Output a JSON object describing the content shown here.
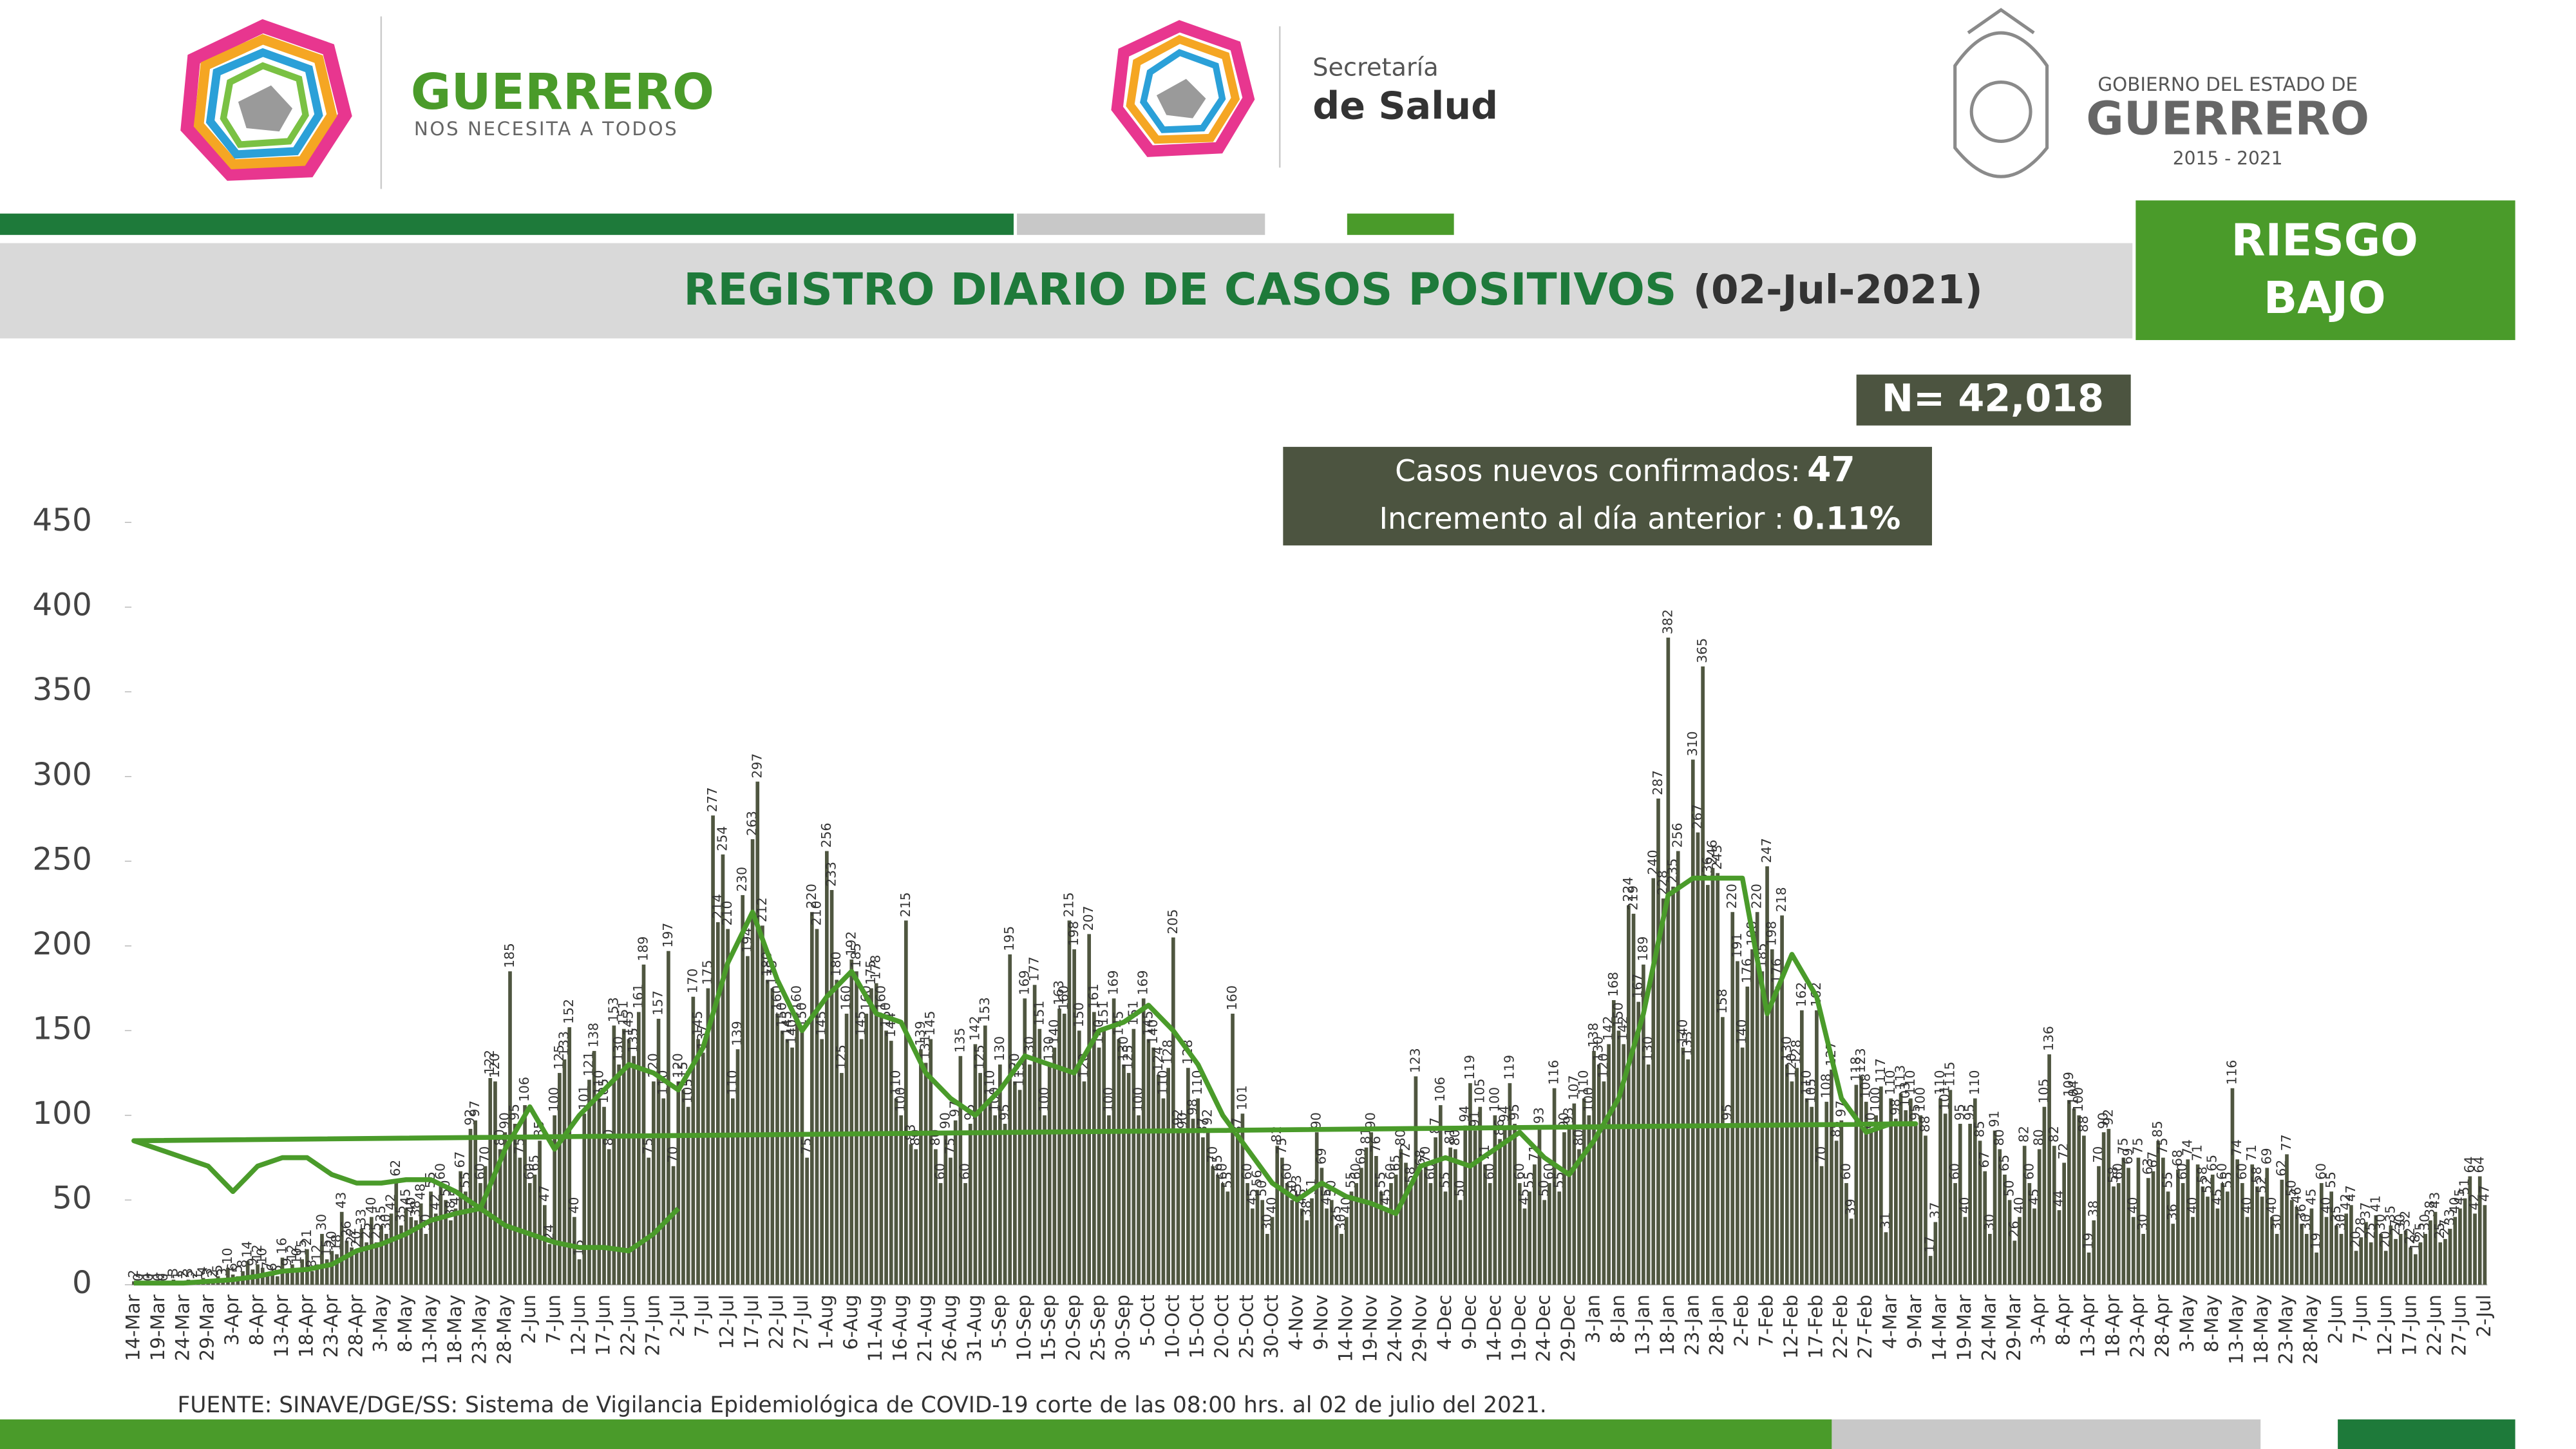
{
  "header": {
    "brand_title": "GUERRERO",
    "brand_subtitle": "NOS NECESITA A TODOS",
    "ministry_line1": "Secretaría",
    "ministry_line2": "de Salud",
    "gov_line1": "GOBIERNO DEL ESTADO DE",
    "gov_line2": "GUERRERO",
    "gov_years": "2015 - 2021"
  },
  "badge": {
    "line1": "RIESGO",
    "line2": "BAJO"
  },
  "summary": {
    "n": "N= 42,018",
    "new_cases_label": "Casos nuevos confirmados:",
    "new_cases": 47,
    "increase_label": "Incremento al día anterior :",
    "increase": "0.11%"
  },
  "chart_data": {
    "type": "bar",
    "title": "REGISTRO DIARIO DE CASOS POSITIVOS",
    "subtitle": "(02-Jul-2021)",
    "color": "#4f5640",
    "categories": [
      "14-Mar",
      null,
      null,
      null,
      null,
      "19-Mar",
      null,
      null,
      null,
      null,
      "24-Mar",
      null,
      null,
      null,
      null,
      "29-Mar",
      null,
      null,
      null,
      null,
      "3-Apr",
      null,
      null,
      null,
      null,
      "8-Apr",
      null,
      null,
      null,
      null,
      "13-Apr",
      null,
      null,
      null,
      null,
      "18-Apr",
      null,
      null,
      null,
      null,
      "23-Apr",
      null,
      null,
      null,
      null,
      "28-Apr",
      null,
      null,
      null,
      null,
      "3-May",
      null,
      null,
      null,
      null,
      "8-May",
      null,
      null,
      null,
      null,
      "13-May",
      null,
      null,
      null,
      null,
      "18-May",
      null,
      null,
      null,
      null,
      "23-May",
      null,
      null,
      null,
      null,
      "28-May",
      null,
      null,
      null,
      null,
      "2-Jun",
      null,
      null,
      null,
      null,
      "7-Jun",
      null,
      null,
      null,
      null,
      "12-Jun",
      null,
      null,
      null,
      null,
      "17-Jun",
      null,
      null,
      null,
      null,
      "22-Jun",
      null,
      null,
      null,
      null,
      "27-Jun",
      null,
      null,
      null,
      null,
      "2-Jul",
      null,
      null,
      null,
      null,
      "7-Jul",
      null,
      null,
      null,
      null,
      "12-Jul",
      null,
      null,
      null,
      null,
      "17-Jul",
      null,
      null,
      null,
      null,
      "22-Jul",
      null,
      null,
      null,
      null,
      "27-Jul",
      null,
      null,
      null,
      null,
      "1-Aug",
      null,
      null,
      null,
      null,
      "6-Aug",
      null,
      null,
      null,
      null,
      "11-Aug",
      null,
      null,
      null,
      null,
      "16-Aug",
      null,
      null,
      null,
      null,
      "21-Aug",
      null,
      null,
      null,
      null,
      "26-Aug",
      null,
      null,
      null,
      null,
      "31-Aug",
      null,
      null,
      null,
      null,
      "5-Sep",
      null,
      null,
      null,
      null,
      "10-Sep",
      null,
      null,
      null,
      null,
      "15-Sep",
      null,
      null,
      null,
      null,
      "20-Sep",
      null,
      null,
      null,
      null,
      "25-Sep",
      null,
      null,
      null,
      null,
      "30-Sep",
      null,
      null,
      null,
      null,
      "5-Oct",
      null,
      null,
      null,
      null,
      "10-Oct",
      null,
      null,
      null,
      null,
      "15-Oct",
      null,
      null,
      null,
      null,
      "20-Oct",
      null,
      null,
      null,
      null,
      "25-Oct",
      null,
      null,
      null,
      null,
      "30-Oct",
      null,
      null,
      null,
      null,
      "4-Nov",
      null,
      null,
      null,
      null,
      "9-Nov",
      null,
      null,
      null,
      null,
      "14-Nov",
      null,
      null,
      null,
      null,
      "19-Nov",
      null,
      null,
      null,
      null,
      "24-Nov",
      null,
      null,
      null,
      null,
      "29-Nov",
      null,
      null,
      null,
      null,
      "4-Dec",
      null,
      null,
      null,
      null,
      "9-Dec",
      null,
      null,
      null,
      null,
      "14-Dec",
      null,
      null,
      null,
      null,
      "19-Dec",
      null,
      null,
      null,
      null,
      "24-Dec",
      null,
      null,
      null,
      null,
      "29-Dec",
      null,
      null,
      null,
      null,
      "3-Jan",
      null,
      null,
      null,
      null,
      "8-Jan",
      null,
      null,
      null,
      null,
      "13-Jan",
      null,
      null,
      null,
      null,
      "18-Jan",
      null,
      null,
      null,
      null,
      "23-Jan",
      null,
      null,
      null,
      null,
      "28-Jan",
      null,
      null,
      null,
      null,
      "2-Feb",
      null,
      null,
      null,
      null,
      "7-Feb",
      null,
      null,
      null,
      null,
      "12-Feb",
      null,
      null,
      null,
      null,
      "17-Feb",
      null,
      null,
      null,
      null,
      "22-Feb",
      null,
      null,
      null,
      null,
      "27-Feb",
      null,
      null,
      null,
      null,
      "4-Mar",
      null,
      null,
      null,
      null,
      "9-Mar",
      null,
      null,
      null,
      null,
      "14-Mar",
      null,
      null,
      null,
      null,
      "19-Mar",
      null,
      null,
      null,
      null,
      "24-Mar",
      null,
      null,
      null,
      null,
      "29-Mar",
      null,
      null,
      null,
      null,
      "3-Apr",
      null,
      null,
      null,
      null,
      "8-Apr",
      null,
      null,
      null,
      null,
      "13-Apr",
      null,
      null,
      null,
      null,
      "18-Apr",
      null,
      null,
      null,
      null,
      "23-Apr",
      null,
      null,
      null,
      null,
      "28-Apr",
      null,
      null,
      null,
      null,
      "3-May",
      null,
      null,
      null,
      null,
      "8-May",
      null,
      null,
      null,
      null,
      "13-May",
      null,
      null,
      null,
      null,
      "18-May",
      null,
      null,
      null,
      null,
      "23-May",
      null,
      null,
      null,
      null,
      "28-May",
      null,
      null,
      null,
      null,
      "2-Jun",
      null,
      null,
      null,
      null,
      "7-Jun",
      null,
      null,
      null,
      null,
      "12-Jun",
      null,
      null,
      null,
      null,
      "17-Jun",
      null,
      null,
      null,
      null,
      "22-Jun",
      null,
      null,
      null,
      null,
      "27-Jun",
      null,
      null,
      null,
      null,
      "2-Jul"
    ],
    "values": [
      2,
      0,
      1,
      0,
      1,
      0,
      0,
      1,
      3,
      1,
      2,
      3,
      2,
      1,
      4,
      3,
      2,
      5,
      3,
      10,
      6,
      5,
      8,
      14,
      9,
      12,
      10,
      7,
      6,
      5,
      16,
      9,
      12,
      10,
      15,
      21,
      8,
      12,
      30,
      15,
      20,
      18,
      43,
      26,
      22,
      20,
      33,
      25,
      40,
      25,
      35,
      30,
      42,
      62,
      35,
      45,
      40,
      38,
      48,
      30,
      55,
      42,
      60,
      50,
      38,
      45,
      67,
      55,
      92,
      97,
      60,
      70,
      122,
      120,
      80,
      90,
      185,
      95,
      75,
      106,
      60,
      65,
      85,
      47,
      24,
      100,
      125,
      133,
      152,
      40,
      15,
      101,
      121,
      138,
      110,
      105,
      80,
      153,
      130,
      151,
      145,
      135,
      161,
      189,
      75,
      120,
      157,
      110,
      197,
      70,
      120,
      115,
      105,
      170,
      145,
      137,
      175,
      277,
      214,
      254,
      210,
      110,
      139,
      230,
      194,
      263,
      297,
      212,
      180,
      175,
      160,
      150,
      145,
      140,
      160,
      150,
      75,
      220,
      210,
      145,
      256,
      233,
      180,
      125,
      160,
      192,
      185,
      145,
      160,
      175,
      178,
      160,
      150,
      144,
      110,
      100,
      215,
      83,
      80,
      139,
      131,
      145,
      80,
      60,
      90,
      75,
      97,
      135,
      60,
      95,
      142,
      125,
      153,
      110,
      100,
      130,
      95,
      195,
      120,
      115,
      169,
      130,
      177,
      151,
      100,
      130,
      140,
      163,
      160,
      215,
      198,
      150,
      120,
      207,
      161,
      140,
      151,
      100,
      169,
      145,
      130,
      125,
      151,
      100,
      169,
      145,
      140,
      124,
      110,
      128,
      205,
      92,
      90,
      128,
      98,
      110,
      87,
      92,
      70,
      65,
      60,
      55,
      160,
      87,
      101,
      60,
      45,
      56,
      50,
      30,
      40,
      82,
      75,
      60,
      50,
      53,
      45,
      38,
      51,
      90,
      69,
      45,
      50,
      35,
      30,
      40,
      55,
      60,
      69,
      81,
      90,
      76,
      55,
      45,
      60,
      65,
      80,
      72,
      58,
      123,
      68,
      70,
      60,
      87,
      106,
      55,
      81,
      80,
      50,
      94,
      119,
      91,
      105,
      71,
      60,
      100,
      86,
      94,
      119,
      95,
      60,
      45,
      55,
      71,
      93,
      50,
      60,
      116,
      55,
      90,
      93,
      107,
      80,
      110,
      100,
      138,
      130,
      120,
      142,
      168,
      150,
      142,
      224,
      219,
      167,
      189,
      130,
      240,
      287,
      228,
      382,
      235,
      256,
      140,
      133,
      310,
      267,
      365,
      236,
      246,
      243,
      158,
      95,
      220,
      191,
      140,
      176,
      198,
      220,
      185,
      247,
      198,
      176,
      218,
      130,
      120,
      128,
      162,
      110,
      105,
      162,
      70,
      108,
      127,
      85,
      97,
      60,
      39,
      118,
      123,
      108,
      90,
      100,
      117,
      31,
      110,
      98,
      113,
      103,
      110,
      95,
      100,
      88,
      17,
      37,
      110,
      101,
      115,
      60,
      95,
      40,
      95,
      110,
      85,
      67,
      30,
      91,
      80,
      65,
      50,
      26,
      40,
      82,
      60,
      45,
      80,
      105,
      136,
      82,
      44,
      72,
      109,
      104,
      100,
      88,
      19,
      38,
      70,
      90,
      92,
      58,
      60,
      75,
      69,
      40,
      75,
      30,
      63,
      67,
      85,
      75,
      55,
      36,
      68,
      60,
      74,
      40,
      71,
      58,
      52,
      65,
      45,
      60,
      55,
      116,
      74,
      60,
      40,
      71,
      58,
      52,
      69,
      40,
      30,
      62,
      77,
      50,
      46,
      36,
      30,
      45,
      19,
      60,
      40,
      55,
      35,
      30,
      42,
      47,
      20,
      28,
      37,
      25,
      41,
      30,
      20,
      35,
      27,
      30,
      32,
      22,
      18,
      25,
      30,
      38,
      43,
      25,
      27,
      33,
      40,
      45,
      51,
      64,
      42,
      64,
      47
    ],
    "trend": {
      "color": "#4a9b2a",
      "x": [
        "14-Mar",
        "19-Mar",
        "24-Mar",
        "29-Mar",
        "3-Apr",
        "8-Apr",
        "13-Apr",
        "18-Apr",
        "23-Apr",
        "28-Apr",
        "3-May",
        "8-May",
        "13-May",
        "18-May",
        "23-May",
        "28-May",
        "2-Jun",
        "7-Jun",
        "12-Jun",
        "17-Jun",
        "22-Jun",
        "27-Jun",
        "2-Jul",
        "7-Jul",
        "12-Jul",
        "17-Jul",
        "22-Jul",
        "27-Jul",
        "1-Aug",
        "6-Aug",
        "11-Aug",
        "16-Aug",
        "21-Aug",
        "26-Aug",
        "31-Aug",
        "5-Sep",
        "10-Sep",
        "15-Sep",
        "20-Sep",
        "25-Sep",
        "30-Sep",
        "5-Oct",
        "10-Oct",
        "15-Oct",
        "20-Oct",
        "25-Oct",
        "30-Oct",
        "4-Nov",
        "9-Nov",
        "14-Nov",
        "19-Nov",
        "24-Nov",
        "29-Nov",
        "4-Dec",
        "9-Dec",
        "14-Dec",
        "19-Dec",
        "24-Dec",
        "29-Dec",
        "3-Jan",
        "8-Jan",
        "13-Jan",
        "18-Jan",
        "23-Jan",
        "28-Jan",
        "2-Feb",
        "7-Feb",
        "12-Feb",
        "17-Feb",
        "22-Feb",
        "27-Feb",
        "4-Mar",
        "9-Mar",
        "14-Mar",
        "19-Mar",
        "24-Mar",
        "29-Mar",
        "3-Apr",
        "8-Apr",
        "13-Apr",
        "18-Apr",
        "23-Apr",
        "28-Apr",
        "3-May",
        "8-May",
        "13-May",
        "18-May",
        "23-May",
        "28-May",
        "2-Jun",
        "7-Jun",
        "12-Jun",
        "17-Jun",
        "22-Jun",
        "27-Jun",
        "2-Jul"
      ],
      "values": [
        1,
        1,
        1,
        2,
        3,
        5,
        8,
        9,
        12,
        20,
        24,
        30,
        38,
        42,
        45,
        80,
        105,
        80,
        100,
        115,
        130,
        125,
        115,
        140,
        190,
        220,
        180,
        150,
        170,
        185,
        160,
        155,
        125,
        110,
        100,
        115,
        135,
        130,
        125,
        150,
        155,
        165,
        150,
        130,
        100,
        80,
        60,
        50,
        60,
        52,
        48,
        42,
        70,
        75,
        70,
        80,
        90,
        75,
        65,
        85,
        110,
        160,
        230,
        240,
        240,
        240,
        160,
        195,
        170,
        110,
        90,
        95,
        95,
        85,
        80,
        75,
        70,
        55,
        70,
        75,
        75,
        65,
        60,
        60,
        62,
        62,
        55,
        45,
        35,
        30,
        25,
        22,
        22,
        20,
        30,
        45
      ]
    },
    "ylim": [
      0,
      450
    ],
    "yticks": [
      0,
      50,
      100,
      150,
      200,
      250,
      300,
      350,
      400,
      450
    ]
  },
  "footer": {
    "source": "FUENTE: SINAVE/DGE/SS: Sistema de Vigilancia Epidemiológica de COVID-19 corte de las 08:00 hrs. al 02 de julio del 2021."
  }
}
